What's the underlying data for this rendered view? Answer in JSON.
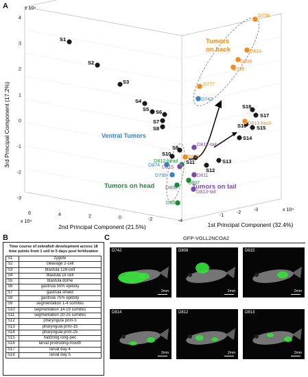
{
  "figure": {
    "panelA": "A",
    "panelB": "B",
    "panelC": "C"
  },
  "chart_data": {
    "type": "scatter",
    "title": "",
    "xlabel": "1st Principal Component (32.4%)",
    "ylabel": "2nd Principal Component (21.5%)",
    "zlabel": "3rd Principal Component (17.2%)",
    "x_multiplier": "x 10⁴",
    "y_multiplier": "x 10⁴",
    "z_multiplier": "x 10⁴",
    "x_ticks": [
      "-1",
      "-2",
      "-3"
    ],
    "y_ticks": [
      "6",
      "4",
      "2",
      "0",
      "-2",
      "-4"
    ],
    "z_ticks": [
      "4",
      "3",
      "2",
      "1",
      "0",
      "-1",
      "-2",
      "-3"
    ],
    "colors": {
      "stages": "#1a1a1a",
      "back": "#f08c1e",
      "ventral": "#3a7fc8",
      "head": "#1f8a3e",
      "tail": "#7b4aa8"
    },
    "group_labels": {
      "back": "Tumors on back",
      "ventral": "Ventral Tumors",
      "head": "Tumors on head",
      "tail": "Tumors on tail"
    },
    "points": [
      {
        "label": "S1",
        "group": "stages"
      },
      {
        "label": "S2",
        "group": "stages"
      },
      {
        "label": "S3",
        "group": "stages"
      },
      {
        "label": "S4",
        "group": "stages"
      },
      {
        "label": "S5",
        "group": "stages"
      },
      {
        "label": "S6",
        "group": "stages"
      },
      {
        "label": "S7",
        "group": "stages"
      },
      {
        "label": "S8",
        "group": "stages"
      },
      {
        "label": "S9",
        "group": "stages"
      },
      {
        "label": "S10",
        "group": "stages"
      },
      {
        "label": "S11",
        "group": "stages"
      },
      {
        "label": "S12",
        "group": "stages"
      },
      {
        "label": "S13",
        "group": "stages"
      },
      {
        "label": "S14",
        "group": "stages"
      },
      {
        "label": "S15",
        "group": "stages"
      },
      {
        "label": "S16",
        "group": "stages"
      },
      {
        "label": "S17",
        "group": "stages"
      },
      {
        "label": "S18",
        "group": "stages"
      },
      {
        "label": "D738",
        "group": "back"
      },
      {
        "label": "D814",
        "group": "back"
      },
      {
        "label": "D809",
        "group": "back"
      },
      {
        "label": "D739",
        "group": "back"
      },
      {
        "label": "D777",
        "group": "back"
      },
      {
        "label": "D813-back",
        "group": "back"
      },
      {
        "label": "D800",
        "group": "back"
      },
      {
        "label": "D742",
        "group": "ventral"
      },
      {
        "label": "D874",
        "group": "ventral"
      },
      {
        "label": "D799",
        "group": "ventral"
      },
      {
        "label": "D812-head",
        "group": "head"
      },
      {
        "label": "D807",
        "group": "head"
      },
      {
        "label": "D808",
        "group": "head"
      },
      {
        "label": "D801",
        "group": "head"
      },
      {
        "label": "D812-tail",
        "group": "tail"
      },
      {
        "label": "D815",
        "group": "tail"
      },
      {
        "label": "D811",
        "group": "tail"
      },
      {
        "label": "D813-tail",
        "group": "tail"
      }
    ]
  },
  "table": {
    "header": "Time course of zebrafish development across 18 time points from 1 cell to 5 days post fertilization",
    "rows": [
      [
        "S1",
        "zygote"
      ],
      [
        "S2",
        "cleavage 2-cell"
      ],
      [
        "S3",
        "blastula 128-cell"
      ],
      [
        "S4",
        "blastula 1k cell"
      ],
      [
        "S5",
        "blastula dome"
      ],
      [
        "S6",
        "gastrula 50% epiboly"
      ],
      [
        "S7",
        "gastrula shield"
      ],
      [
        "S8",
        "gastrula 75% epiboly"
      ],
      [
        "S9",
        "segmentation 1-4 somites"
      ],
      [
        "S10",
        "segmentation 14-19 somites"
      ],
      [
        "S11",
        "segmentation 20-25 somites"
      ],
      [
        "S12",
        "pharyngula prim-5"
      ],
      [
        "S13",
        "pharyngula prim-15"
      ],
      [
        "S14",
        "pharyngula prim-25"
      ],
      [
        "S15",
        "hatching long-pec"
      ],
      [
        "S16",
        "larval protruding-mouth"
      ],
      [
        "S17",
        "larval day 4"
      ],
      [
        "S18",
        "larval day 5"
      ]
    ]
  },
  "gfp": {
    "title": "GFP-VGLL2NCOA2",
    "fish": [
      {
        "id": "D742",
        "scale": "2mm"
      },
      {
        "id": "D808",
        "scale": "2mm"
      },
      {
        "id": "D815",
        "scale": "2mm"
      },
      {
        "id": "D814",
        "scale": "2mm"
      },
      {
        "id": "D812",
        "scale": "2mm"
      },
      {
        "id": "D813",
        "scale": "2mm"
      }
    ]
  }
}
